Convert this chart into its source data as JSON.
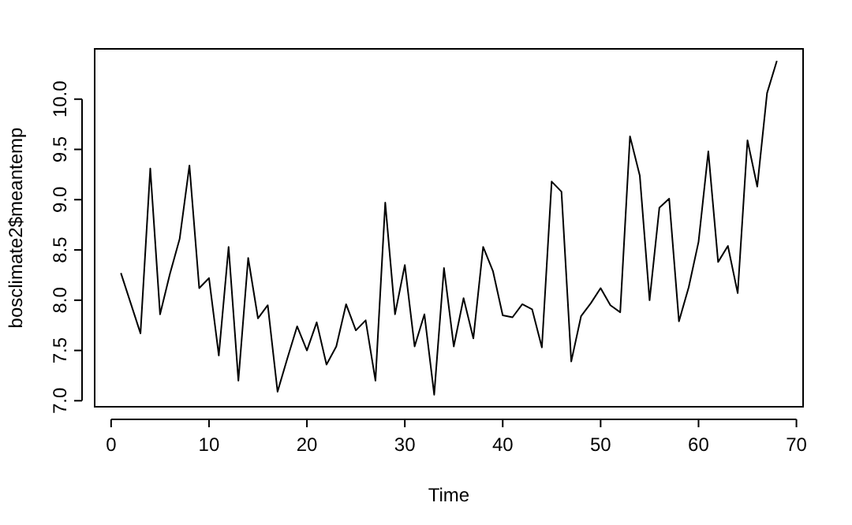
{
  "chart_data": {
    "type": "line",
    "xlabel": "Time",
    "ylabel": "bosclimate2$meantemp",
    "x": [
      1,
      2,
      3,
      4,
      5,
      6,
      7,
      8,
      9,
      10,
      11,
      12,
      13,
      14,
      15,
      16,
      17,
      18,
      19,
      20,
      21,
      22,
      23,
      24,
      25,
      26,
      27,
      28,
      29,
      30,
      31,
      32,
      33,
      34,
      35,
      36,
      37,
      38,
      39,
      40,
      41,
      42,
      43,
      44,
      45,
      46,
      47,
      48,
      49,
      50,
      51,
      52,
      53,
      54,
      55,
      56,
      57,
      58,
      59,
      60,
      61,
      62,
      63,
      64,
      65,
      66,
      67,
      68
    ],
    "series": [
      {
        "color": "#000000",
        "values": [
          8.27,
          7.97,
          7.67,
          9.31,
          7.86,
          8.26,
          8.61,
          9.34,
          8.12,
          8.22,
          7.45,
          8.53,
          7.2,
          8.42,
          7.82,
          7.95,
          7.09,
          7.42,
          7.74,
          7.5,
          7.78,
          7.36,
          7.54,
          7.96,
          7.7,
          7.8,
          7.2,
          8.97,
          7.86,
          8.35,
          7.54,
          7.86,
          7.06,
          8.32,
          7.54,
          8.02,
          7.62,
          8.53,
          8.29,
          7.85,
          7.83,
          7.96,
          7.91,
          7.53,
          9.18,
          9.08,
          7.39,
          7.84,
          7.97,
          8.12,
          7.95,
          7.88,
          9.63,
          9.24,
          8.0,
          8.92,
          9.01,
          7.79,
          8.13,
          8.58,
          9.48,
          8.38,
          8.54,
          8.07,
          9.59,
          9.13,
          10.06,
          10.38
        ]
      }
    ],
    "xlim": [
      -1.68,
      70.68
    ],
    "ylim": [
      6.94,
      10.5
    ],
    "xticks": [
      0,
      10,
      20,
      30,
      40,
      50,
      60,
      70
    ],
    "yticks": [
      {
        "value": 7,
        "label": "7.0"
      },
      {
        "value": 7.5,
        "label": "7.5"
      },
      {
        "value": 8,
        "label": "8.0"
      },
      {
        "value": 8.5,
        "label": "8.5"
      },
      {
        "value": 9,
        "label": "9.0"
      },
      {
        "value": 9.5,
        "label": "9.5"
      },
      {
        "value": 10,
        "label": "10.0"
      }
    ],
    "line_style": "solid"
  }
}
